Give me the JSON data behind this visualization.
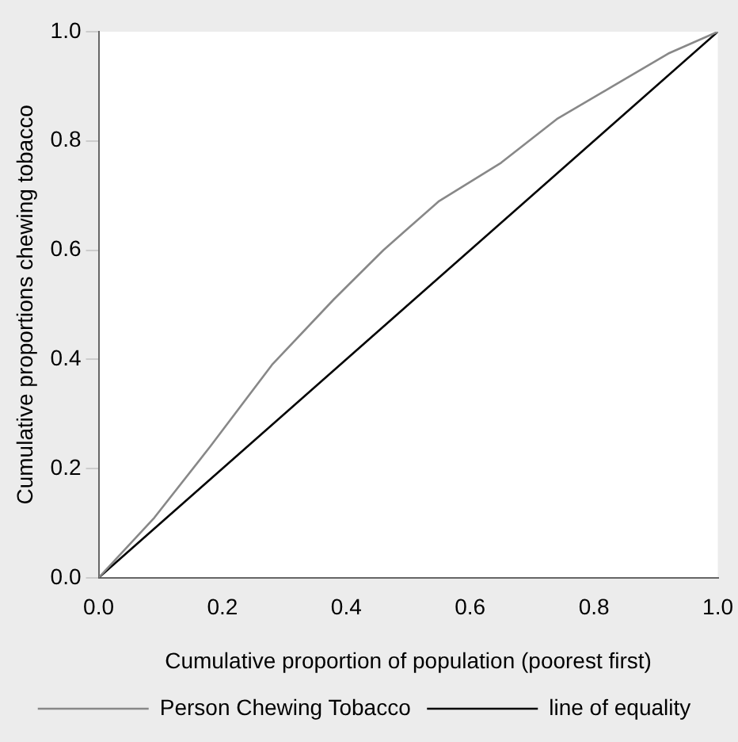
{
  "chart_data": {
    "type": "line",
    "xlabel": "Cumulative proportion of population (poorest first)",
    "ylabel": "Cumulative proportions chewing tobacco",
    "xlim": [
      0,
      1
    ],
    "ylim": [
      0,
      1
    ],
    "xticks": [
      {
        "value": 0,
        "label": "0.0"
      },
      0.2,
      0.4,
      0.6,
      0.8,
      {
        "value": 1,
        "label": "1.0"
      }
    ],
    "yticks": [
      {
        "value": 0,
        "label": "0.0"
      },
      0.2,
      0.4,
      0.6,
      0.8,
      {
        "value": 1,
        "label": "1.0"
      }
    ],
    "grid": false,
    "legend": "bottom",
    "marker": "none",
    "line_style": "solid",
    "series": [
      {
        "name": "Person Chewing Tobacco",
        "color": "#888888",
        "x": [
          0,
          0.09,
          0.18,
          0.28,
          0.38,
          0.46,
          0.55,
          0.65,
          0.74,
          0.83,
          0.92,
          1
        ],
        "values": [
          0,
          0.11,
          0.24,
          0.39,
          0.51,
          0.6,
          0.69,
          0.76,
          0.84,
          0.9,
          0.96,
          1
        ]
      },
      {
        "name": "line of equality",
        "color": "#000000",
        "x": [
          0,
          1
        ],
        "values": [
          0,
          1
        ]
      }
    ]
  }
}
